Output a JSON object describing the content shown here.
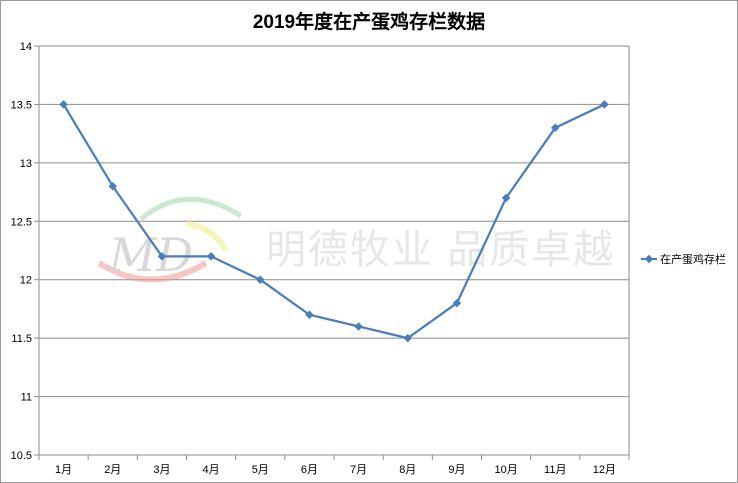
{
  "chart_data": {
    "type": "line",
    "title": "2019年度在产蛋鸡存栏数据",
    "categories": [
      "1月",
      "2月",
      "3月",
      "4月",
      "5月",
      "6月",
      "7月",
      "8月",
      "9月",
      "10月",
      "11月",
      "12月"
    ],
    "series": [
      {
        "name": "在产蛋鸡存栏",
        "values": [
          13.5,
          12.8,
          12.2,
          12.2,
          12.0,
          11.7,
          11.6,
          11.5,
          11.8,
          12.7,
          13.3,
          13.5
        ]
      }
    ],
    "ylim": [
      10.5,
      14
    ],
    "yticks": [
      "10.5",
      "11",
      "11.5",
      "12",
      "12.5",
      "13",
      "13.5",
      "14"
    ],
    "grid": true,
    "legend": "right",
    "series_color": "#4a7ebb"
  },
  "watermark": {
    "logo_text": "MD",
    "text": "明德牧业 品质卓越"
  }
}
